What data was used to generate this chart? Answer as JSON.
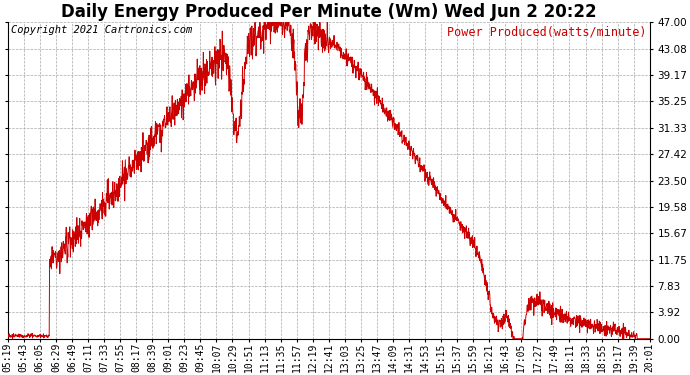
{
  "title": "Daily Energy Produced Per Minute (Wm) Wed Jun 2 20:22",
  "copyright": "Copyright 2021 Cartronics.com",
  "legend_label": "Power Produced(watts/minute)",
  "line_color": "#cc0000",
  "background_color": "#ffffff",
  "grid_color": "#aaaaaa",
  "yticks": [
    0.0,
    3.92,
    7.83,
    11.75,
    15.67,
    19.58,
    23.5,
    27.42,
    31.33,
    35.25,
    39.17,
    43.08,
    47.0
  ],
  "ymax": 47.0,
  "xtick_labels": [
    "05:19",
    "05:43",
    "06:05",
    "06:29",
    "06:49",
    "07:11",
    "07:33",
    "07:55",
    "08:17",
    "08:39",
    "09:01",
    "09:23",
    "09:45",
    "10:07",
    "10:29",
    "10:51",
    "11:13",
    "11:35",
    "11:57",
    "12:19",
    "12:41",
    "13:03",
    "13:25",
    "13:47",
    "14:09",
    "14:31",
    "14:53",
    "15:15",
    "15:37",
    "15:59",
    "16:21",
    "16:43",
    "17:05",
    "17:27",
    "17:49",
    "18:11",
    "18:33",
    "18:55",
    "19:17",
    "19:39",
    "20:01"
  ],
  "title_fontsize": 12,
  "axis_fontsize": 7,
  "copyright_fontsize": 7.5,
  "legend_fontsize": 8.5
}
